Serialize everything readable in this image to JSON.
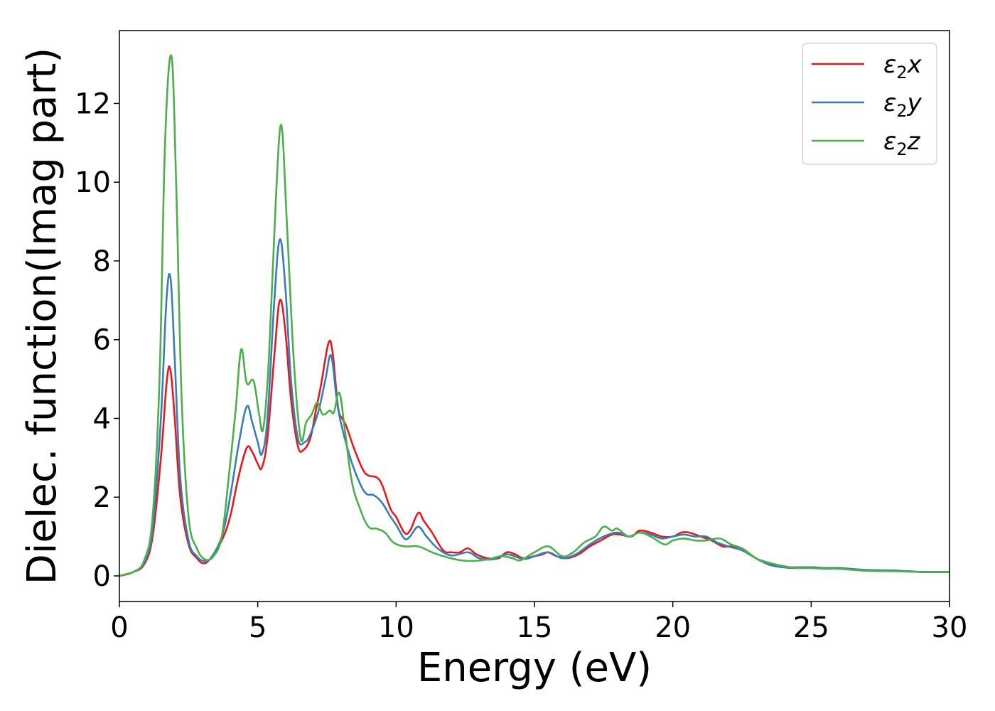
{
  "chart_data": {
    "type": "line",
    "title": "",
    "xlabel": "Energy (eV)",
    "ylabel": "Dielec. function(Imag part)",
    "xlim": [
      0,
      30
    ],
    "ylim": [
      -0.65,
      13.85
    ],
    "xticks": [
      0,
      5,
      10,
      15,
      20,
      25,
      30
    ],
    "yticks": [
      0,
      2,
      4,
      6,
      8,
      10,
      12
    ],
    "grid": false,
    "legend_position": "top-right",
    "series": [
      {
        "name": "ε₂x",
        "legend": {
          "base": "ε",
          "sub": "2",
          "suffix": "x"
        },
        "color": "#e41a1c",
        "points": [
          [
            0,
            0
          ],
          [
            0.5,
            0.1
          ],
          [
            0.9,
            0.3
          ],
          [
            1.2,
            1.0
          ],
          [
            1.5,
            3.0
          ],
          [
            1.72,
            5.0
          ],
          [
            1.85,
            5.2
          ],
          [
            2.0,
            4.0
          ],
          [
            2.2,
            2.0
          ],
          [
            2.5,
            0.8
          ],
          [
            2.8,
            0.45
          ],
          [
            3.05,
            0.32
          ],
          [
            3.3,
            0.45
          ],
          [
            3.7,
            0.9
          ],
          [
            4.0,
            1.5
          ],
          [
            4.3,
            2.5
          ],
          [
            4.6,
            3.25
          ],
          [
            4.8,
            3.15
          ],
          [
            5.0,
            2.85
          ],
          [
            5.15,
            2.75
          ],
          [
            5.35,
            3.5
          ],
          [
            5.6,
            5.6
          ],
          [
            5.8,
            7.0
          ],
          [
            6.0,
            6.2
          ],
          [
            6.2,
            4.5
          ],
          [
            6.45,
            3.3
          ],
          [
            6.65,
            3.2
          ],
          [
            6.9,
            3.5
          ],
          [
            7.1,
            4.2
          ],
          [
            7.3,
            4.9
          ],
          [
            7.55,
            5.9
          ],
          [
            7.7,
            5.7
          ],
          [
            7.9,
            4.3
          ],
          [
            8.05,
            4.0
          ],
          [
            8.2,
            3.8
          ],
          [
            8.5,
            3.2
          ],
          [
            8.8,
            2.7
          ],
          [
            9.0,
            2.55
          ],
          [
            9.3,
            2.5
          ],
          [
            9.5,
            2.3
          ],
          [
            9.8,
            1.7
          ],
          [
            10.0,
            1.5
          ],
          [
            10.3,
            1.1
          ],
          [
            10.5,
            1.15
          ],
          [
            10.8,
            1.6
          ],
          [
            11.0,
            1.4
          ],
          [
            11.3,
            1.1
          ],
          [
            11.7,
            0.65
          ],
          [
            12.0,
            0.6
          ],
          [
            12.3,
            0.6
          ],
          [
            12.6,
            0.7
          ],
          [
            12.9,
            0.55
          ],
          [
            13.3,
            0.45
          ],
          [
            13.7,
            0.45
          ],
          [
            14.0,
            0.6
          ],
          [
            14.3,
            0.55
          ],
          [
            14.6,
            0.45
          ],
          [
            15.0,
            0.5
          ],
          [
            15.3,
            0.55
          ],
          [
            15.5,
            0.6
          ],
          [
            15.8,
            0.5
          ],
          [
            16.2,
            0.45
          ],
          [
            16.6,
            0.55
          ],
          [
            17.0,
            0.75
          ],
          [
            17.4,
            0.9
          ],
          [
            17.8,
            1.05
          ],
          [
            18.1,
            1.05
          ],
          [
            18.5,
            1.0
          ],
          [
            18.8,
            1.15
          ],
          [
            19.2,
            1.1
          ],
          [
            19.6,
            1.0
          ],
          [
            20.0,
            1.0
          ],
          [
            20.3,
            1.1
          ],
          [
            20.6,
            1.1
          ],
          [
            21.0,
            1.0
          ],
          [
            21.4,
            0.9
          ],
          [
            21.8,
            0.75
          ],
          [
            22.1,
            0.75
          ],
          [
            22.5,
            0.7
          ],
          [
            23.0,
            0.45
          ],
          [
            23.5,
            0.3
          ],
          [
            24.0,
            0.22
          ],
          [
            24.5,
            0.2
          ],
          [
            25.0,
            0.22
          ],
          [
            25.5,
            0.2
          ],
          [
            26.0,
            0.2
          ],
          [
            27.0,
            0.15
          ],
          [
            28.0,
            0.13
          ],
          [
            29.0,
            0.1
          ],
          [
            30.0,
            0.1
          ]
        ]
      },
      {
        "name": "ε₂y",
        "legend": {
          "base": "ε",
          "sub": "2",
          "suffix": "y"
        },
        "color": "#377eb8",
        "points": [
          [
            0,
            0
          ],
          [
            0.5,
            0.1
          ],
          [
            0.9,
            0.35
          ],
          [
            1.2,
            1.2
          ],
          [
            1.5,
            4.0
          ],
          [
            1.7,
            7.0
          ],
          [
            1.85,
            7.55
          ],
          [
            2.0,
            5.5
          ],
          [
            2.2,
            2.5
          ],
          [
            2.5,
            0.9
          ],
          [
            2.8,
            0.5
          ],
          [
            3.05,
            0.38
          ],
          [
            3.3,
            0.45
          ],
          [
            3.7,
            1.0
          ],
          [
            4.0,
            2.0
          ],
          [
            4.3,
            3.3
          ],
          [
            4.6,
            4.3
          ],
          [
            4.8,
            3.9
          ],
          [
            5.0,
            3.4
          ],
          [
            5.15,
            3.1
          ],
          [
            5.35,
            4.0
          ],
          [
            5.6,
            7.0
          ],
          [
            5.8,
            8.55
          ],
          [
            6.0,
            7.3
          ],
          [
            6.2,
            5.0
          ],
          [
            6.45,
            3.5
          ],
          [
            6.7,
            3.4
          ],
          [
            6.9,
            3.6
          ],
          [
            7.2,
            4.2
          ],
          [
            7.45,
            5.0
          ],
          [
            7.65,
            5.6
          ],
          [
            7.85,
            4.5
          ],
          [
            8.0,
            3.9
          ],
          [
            8.3,
            3.1
          ],
          [
            8.6,
            2.5
          ],
          [
            8.9,
            2.1
          ],
          [
            9.2,
            2.05
          ],
          [
            9.5,
            1.85
          ],
          [
            9.8,
            1.5
          ],
          [
            10.0,
            1.3
          ],
          [
            10.3,
            0.95
          ],
          [
            10.5,
            1.0
          ],
          [
            10.8,
            1.25
          ],
          [
            11.1,
            1.0
          ],
          [
            11.5,
            0.7
          ],
          [
            12.0,
            0.52
          ],
          [
            12.6,
            0.6
          ],
          [
            13.0,
            0.45
          ],
          [
            13.5,
            0.42
          ],
          [
            14.0,
            0.55
          ],
          [
            14.6,
            0.43
          ],
          [
            15.0,
            0.5
          ],
          [
            15.5,
            0.6
          ],
          [
            16.0,
            0.45
          ],
          [
            16.5,
            0.55
          ],
          [
            17.0,
            0.8
          ],
          [
            17.5,
            1.0
          ],
          [
            18.0,
            1.1
          ],
          [
            18.4,
            1.0
          ],
          [
            18.8,
            1.1
          ],
          [
            19.2,
            1.05
          ],
          [
            19.6,
            0.95
          ],
          [
            20.0,
            1.0
          ],
          [
            20.4,
            1.05
          ],
          [
            20.8,
            1.0
          ],
          [
            21.2,
            1.0
          ],
          [
            21.6,
            0.85
          ],
          [
            22.0,
            0.75
          ],
          [
            22.5,
            0.65
          ],
          [
            23.0,
            0.45
          ],
          [
            23.5,
            0.28
          ],
          [
            24.0,
            0.22
          ],
          [
            24.5,
            0.22
          ],
          [
            25.0,
            0.22
          ],
          [
            25.5,
            0.2
          ],
          [
            26.0,
            0.2
          ],
          [
            27.0,
            0.15
          ],
          [
            28.0,
            0.14
          ],
          [
            29.0,
            0.1
          ],
          [
            30.0,
            0.1
          ]
        ]
      },
      {
        "name": "ε₂z",
        "legend": {
          "base": "ε",
          "sub": "2",
          "suffix": "z"
        },
        "color": "#4daf4a",
        "points": [
          [
            0,
            0
          ],
          [
            0.5,
            0.1
          ],
          [
            0.9,
            0.4
          ],
          [
            1.2,
            1.5
          ],
          [
            1.45,
            5.0
          ],
          [
            1.65,
            11.0
          ],
          [
            1.88,
            13.2
          ],
          [
            2.05,
            10.0
          ],
          [
            2.25,
            4.5
          ],
          [
            2.5,
            1.5
          ],
          [
            2.8,
            0.7
          ],
          [
            3.1,
            0.42
          ],
          [
            3.4,
            0.5
          ],
          [
            3.7,
            1.0
          ],
          [
            3.95,
            2.5
          ],
          [
            4.2,
            4.2
          ],
          [
            4.4,
            5.75
          ],
          [
            4.6,
            4.9
          ],
          [
            4.85,
            4.95
          ],
          [
            5.05,
            4.1
          ],
          [
            5.2,
            3.75
          ],
          [
            5.4,
            5.5
          ],
          [
            5.65,
            9.5
          ],
          [
            5.85,
            11.45
          ],
          [
            6.05,
            9.0
          ],
          [
            6.3,
            5.5
          ],
          [
            6.55,
            3.5
          ],
          [
            6.75,
            3.9
          ],
          [
            6.95,
            4.1
          ],
          [
            7.15,
            4.4
          ],
          [
            7.35,
            4.1
          ],
          [
            7.6,
            4.2
          ],
          [
            7.75,
            4.15
          ],
          [
            7.95,
            4.65
          ],
          [
            8.15,
            3.7
          ],
          [
            8.4,
            2.4
          ],
          [
            8.7,
            1.7
          ],
          [
            9.0,
            1.25
          ],
          [
            9.3,
            1.2
          ],
          [
            9.6,
            1.1
          ],
          [
            9.9,
            0.85
          ],
          [
            10.3,
            0.75
          ],
          [
            10.8,
            0.75
          ],
          [
            11.3,
            0.6
          ],
          [
            11.7,
            0.5
          ],
          [
            12.3,
            0.4
          ],
          [
            12.8,
            0.38
          ],
          [
            13.3,
            0.42
          ],
          [
            13.8,
            0.5
          ],
          [
            14.2,
            0.45
          ],
          [
            14.5,
            0.4
          ],
          [
            15.0,
            0.6
          ],
          [
            15.5,
            0.75
          ],
          [
            16.0,
            0.5
          ],
          [
            16.4,
            0.6
          ],
          [
            16.8,
            0.85
          ],
          [
            17.2,
            1.0
          ],
          [
            17.5,
            1.25
          ],
          [
            17.8,
            1.15
          ],
          [
            18.0,
            1.2
          ],
          [
            18.4,
            1.0
          ],
          [
            18.8,
            1.1
          ],
          [
            19.2,
            1.0
          ],
          [
            19.7,
            0.8
          ],
          [
            20.0,
            0.9
          ],
          [
            20.4,
            0.95
          ],
          [
            20.8,
            0.9
          ],
          [
            21.2,
            0.9
          ],
          [
            21.7,
            0.95
          ],
          [
            22.1,
            0.8
          ],
          [
            22.5,
            0.7
          ],
          [
            23.0,
            0.45
          ],
          [
            23.5,
            0.33
          ],
          [
            24.0,
            0.25
          ],
          [
            24.5,
            0.2
          ],
          [
            25.0,
            0.2
          ],
          [
            25.5,
            0.18
          ],
          [
            26.0,
            0.18
          ],
          [
            27.0,
            0.13
          ],
          [
            28.0,
            0.12
          ],
          [
            29.0,
            0.1
          ],
          [
            30.0,
            0.1
          ]
        ]
      }
    ]
  }
}
